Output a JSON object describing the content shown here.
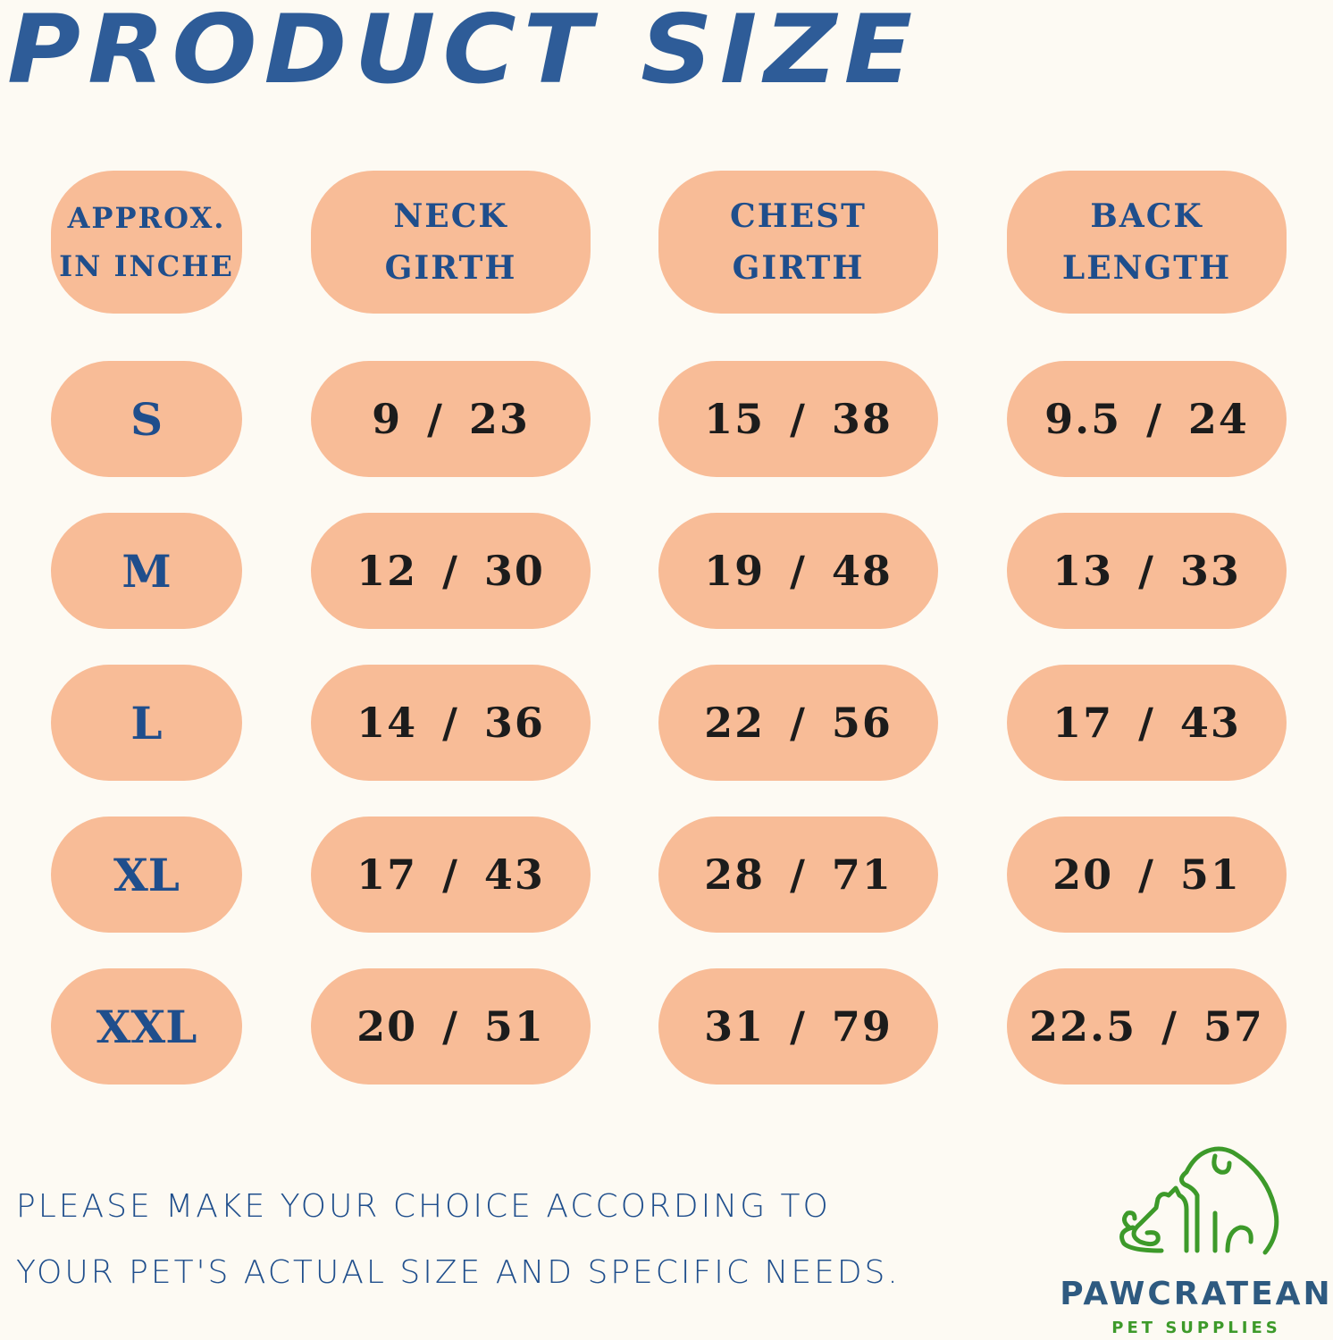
{
  "title": "PRODUCT SIZE",
  "headers": [
    "APPROX.\nIN INCHE",
    "NECK\nGIRTH",
    "CHEST\nGIRTH",
    "BACK\nLENGTH"
  ],
  "header_lines": [
    [
      "APPROX.",
      "IN INCHE"
    ],
    [
      "NECK",
      "GIRTH"
    ],
    [
      "CHEST",
      "GIRTH"
    ],
    [
      "BACK",
      "LENGTH"
    ]
  ],
  "rows": [
    {
      "size": "S",
      "neck": "9 / 23",
      "chest": "15 / 38",
      "back": "9.5 / 24"
    },
    {
      "size": "M",
      "neck": "12 / 30",
      "chest": "19 / 48",
      "back": "13 / 33"
    },
    {
      "size": "L",
      "neck": "14 / 36",
      "chest": "22 / 56",
      "back": "17 / 43"
    },
    {
      "size": "XL",
      "neck": "17 / 43",
      "chest": "28 / 71",
      "back": "20 / 51"
    },
    {
      "size": "XXL",
      "neck": "20 / 51",
      "chest": "31 / 79",
      "back": "22.5 / 57"
    }
  ],
  "note": [
    "PLEASE MAKE YOUR CHOICE ACCORDING TO",
    "YOUR PET'S ACTUAL SIZE AND SPECIFIC NEEDS."
  ],
  "brand": {
    "name": "PAWCRATEAN",
    "tagline": "PET SUPPLIES",
    "logo_icon": "dog-and-cat-outline-icon"
  },
  "colors": {
    "title": "#2e5c98",
    "pill": "#f8bc97",
    "header_text": "#1f4e8c",
    "value_text": "#1c1c1c",
    "logo": "#3d9a2a"
  }
}
